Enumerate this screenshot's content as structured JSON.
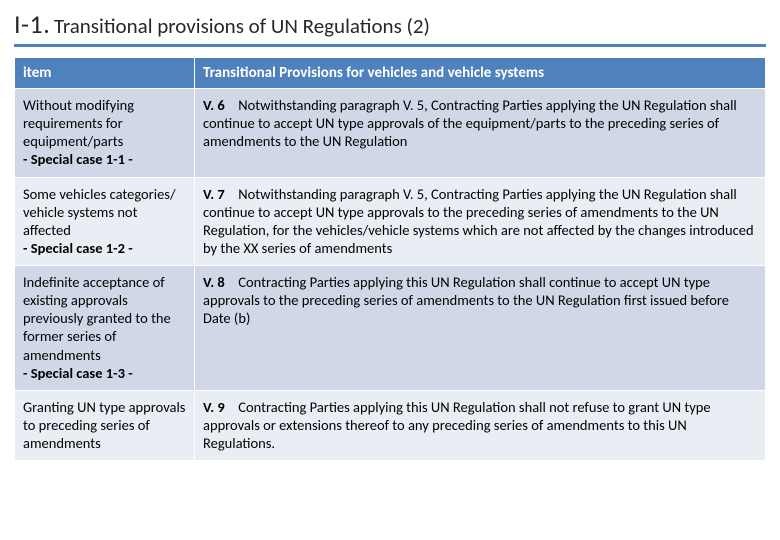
{
  "heading": {
    "prefix": "I-1.",
    "rest": "Transitional provisions of UN Regulations (2)"
  },
  "table": {
    "headers": {
      "item": "item",
      "prov": "Transitional Provisions for vehicles and vehicle systems"
    },
    "rows": [
      {
        "item_main": "Without modifying requirements for equipment/parts",
        "item_sub": "- Special case 1-1 -",
        "num": "V. 6",
        "prov": "Notwithstanding paragraph V. 5, Contracting Parties applying the UN Regulation shall continue to accept UN type approvals of the equipment/parts to the preceding series of amendments to the UN Regulation"
      },
      {
        "item_main": "Some vehicles categories/ vehicle systems not affected",
        "item_sub": "- Special case 1-2 -",
        "num": "V. 7",
        "prov": "Notwithstanding paragraph V. 5, Contracting Parties applying the UN Regulation shall continue to accept UN type approvals to the preceding series of amendments to the UN Regulation, for the vehicles/vehicle systems which are not affected by the changes introduced by the XX series of amendments"
      },
      {
        "item_main": "Indefinite acceptance of existing approvals previously granted to the former series of amendments",
        "item_sub": "- Special case 1-3 -",
        "num": "V. 8",
        "prov": "Contracting Parties applying this UN Regulation shall continue to accept UN type approvals to the preceding series of amendments to the UN Regulation first issued before Date (b)"
      },
      {
        "item_main": "Granting UN type approvals to preceding series of amendments",
        "item_sub": "",
        "num": "V. 9",
        "prov": "Contracting Parties applying this UN Regulation shall not refuse to grant UN type approvals or extensions thereof to any preceding series of amendments to this UN Regulations."
      }
    ]
  },
  "colors": {
    "header_bg": "#4f81bd",
    "band_a": "#d0d8e8",
    "band_b": "#e9edf4",
    "rule": "#4f81bd"
  }
}
